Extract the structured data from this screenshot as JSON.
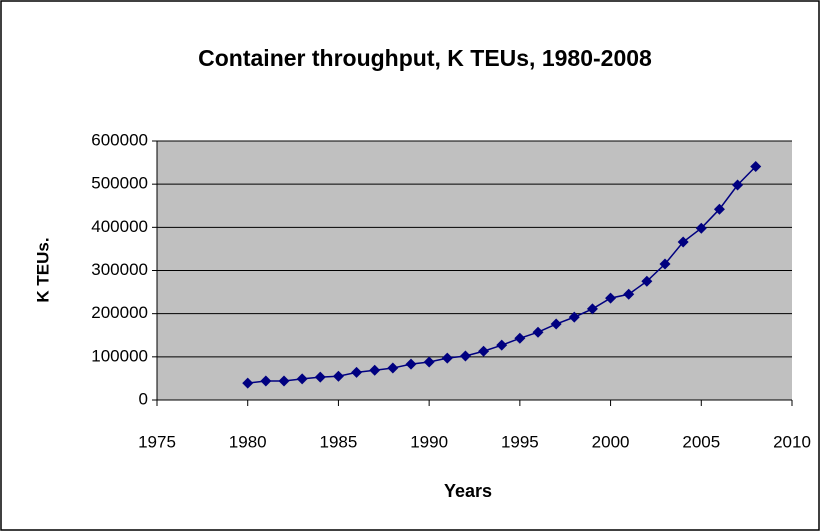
{
  "chart_data": {
    "type": "line",
    "title": "Container throughput, K TEUs, 1980-2008",
    "x_label": "Years",
    "y_label": "K TEUs.",
    "x": [
      1980,
      1981,
      1982,
      1983,
      1984,
      1985,
      1986,
      1987,
      1988,
      1989,
      1990,
      1991,
      1992,
      1993,
      1994,
      1995,
      1996,
      1997,
      1998,
      1999,
      2000,
      2001,
      2002,
      2003,
      2004,
      2005,
      2006,
      2007,
      2008
    ],
    "series": [
      {
        "name": "K TEUs",
        "color": "#000080",
        "values": [
          39000,
          44000,
          44000,
          49000,
          53000,
          55000,
          64000,
          69000,
          74000,
          83000,
          88000,
          97000,
          102000,
          113000,
          127000,
          143000,
          157000,
          176000,
          192000,
          211000,
          236000,
          245000,
          275000,
          315000,
          366000,
          398000,
          442000,
          498000,
          541000
        ]
      }
    ],
    "xlim": [
      1975,
      2010
    ],
    "xticks": [
      1975,
      1980,
      1985,
      1990,
      1995,
      2000,
      2005,
      2010
    ],
    "ylim": [
      0,
      600000
    ],
    "yticks": [
      0,
      100000,
      200000,
      300000,
      400000,
      500000,
      600000
    ],
    "grid": true
  }
}
